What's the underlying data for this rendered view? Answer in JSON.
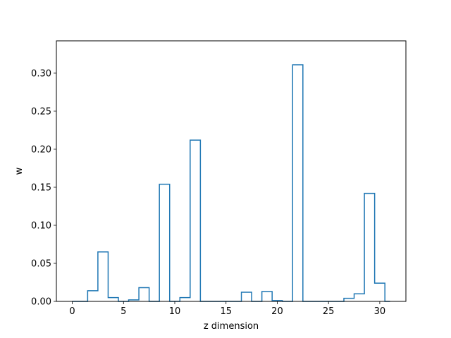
{
  "chart_data": {
    "type": "step",
    "title": "",
    "xlabel": "z dimension",
    "ylabel": "w",
    "xlim": [
      -1.55,
      32.55
    ],
    "ylim": [
      0,
      0.3425
    ],
    "x_ticks": [
      0,
      5,
      10,
      15,
      20,
      25,
      30
    ],
    "x_tick_labels": [
      "0",
      "5",
      "10",
      "15",
      "20",
      "25",
      "30"
    ],
    "y_ticks": [
      0.0,
      0.05,
      0.1,
      0.15,
      0.2,
      0.25,
      0.3
    ],
    "y_tick_labels": [
      "0.00",
      "0.05",
      "0.10",
      "0.15",
      "0.20",
      "0.25",
      "0.30"
    ],
    "grid": false,
    "line_color": "#1f77b4",
    "step_where": "mid",
    "x": [
      0,
      1,
      2,
      3,
      4,
      5,
      6,
      7,
      8,
      9,
      10,
      11,
      12,
      13,
      14,
      15,
      16,
      17,
      18,
      19,
      20,
      21,
      22,
      23,
      24,
      25,
      26,
      27,
      28,
      29,
      30,
      31
    ],
    "values": [
      0.0,
      0.0,
      0.014,
      0.065,
      0.005,
      0.0,
      0.002,
      0.018,
      0.0,
      0.154,
      0.0,
      0.005,
      0.212,
      0.0,
      0.0,
      0.0,
      0.0,
      0.012,
      0.0,
      0.013,
      0.001,
      0.0,
      0.311,
      0.0,
      0.0,
      0.0,
      0.0,
      0.004,
      0.01,
      0.142,
      0.024,
      0.0
    ]
  }
}
